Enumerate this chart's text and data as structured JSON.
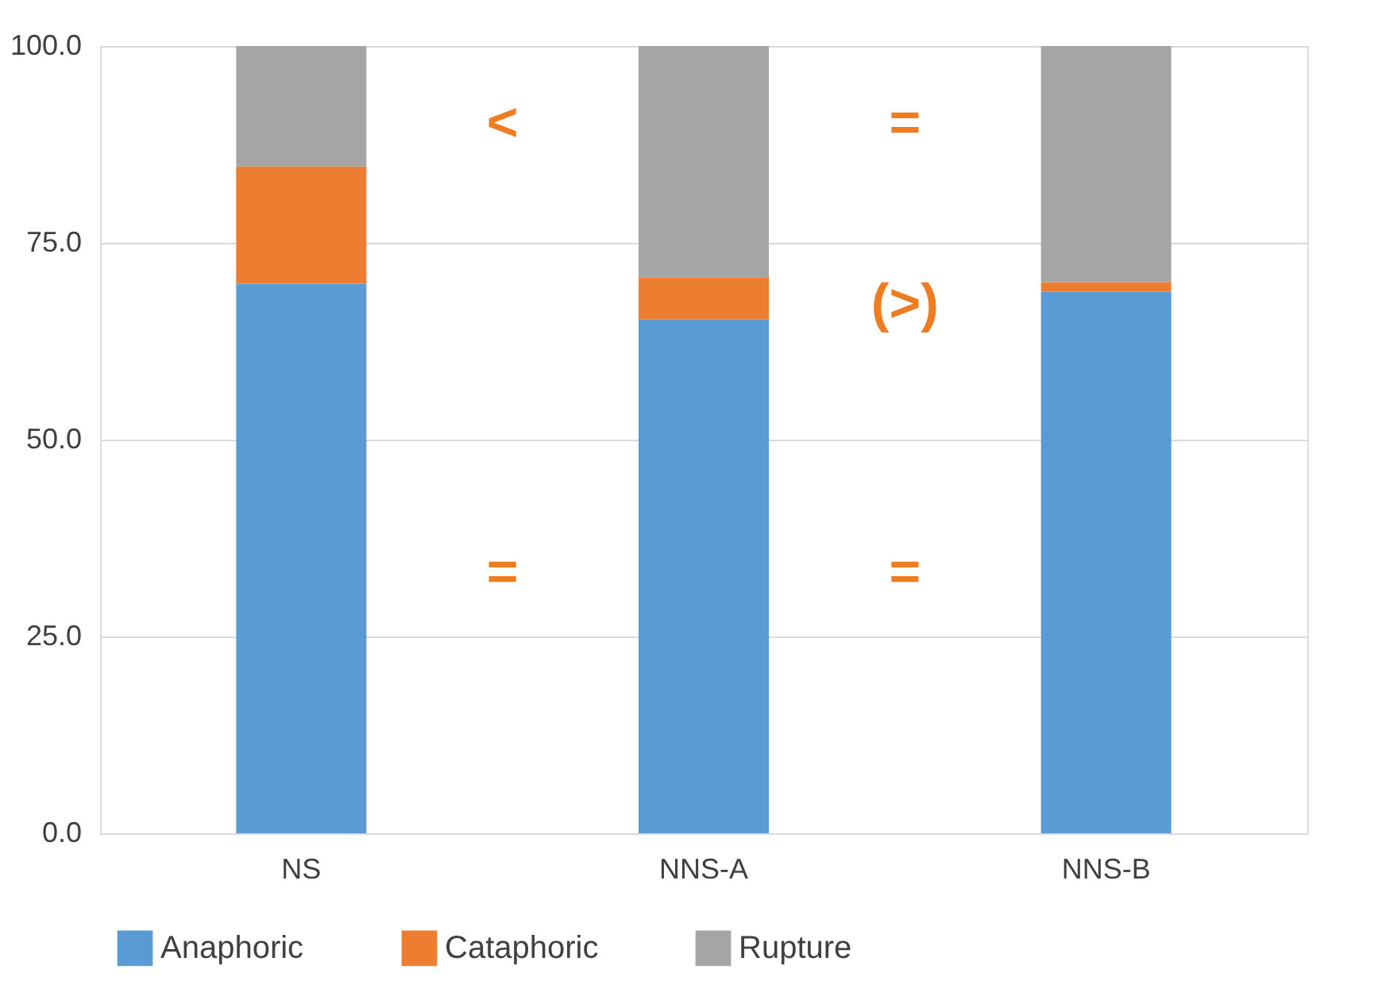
{
  "chart_data": {
    "type": "bar",
    "stacked": true,
    "categories": [
      "NS",
      "NNS-A",
      "NNS-B"
    ],
    "series": [
      {
        "name": "Anaphoric",
        "color": "#5b9bd5",
        "values": [
          69.8,
          65.3,
          68.8
        ]
      },
      {
        "name": "Cataphoric",
        "color": "#ed7d31",
        "values": [
          14.9,
          5.3,
          1.2
        ]
      },
      {
        "name": "Rupture",
        "color": "#a5a5a5",
        "values": [
          15.3,
          29.4,
          30.0
        ]
      }
    ],
    "ylim": [
      0,
      100
    ],
    "yticks": [
      {
        "value": 0,
        "label": "0.0"
      },
      {
        "value": 25,
        "label": "25.0"
      },
      {
        "value": 50,
        "label": "50.0"
      },
      {
        "value": 75,
        "label": "75.0"
      },
      {
        "value": 100,
        "label": "100.0"
      }
    ],
    "grid": "y",
    "legend": "bottom",
    "annotations": [
      "<",
      "=",
      "(>)",
      "=",
      "="
    ]
  }
}
